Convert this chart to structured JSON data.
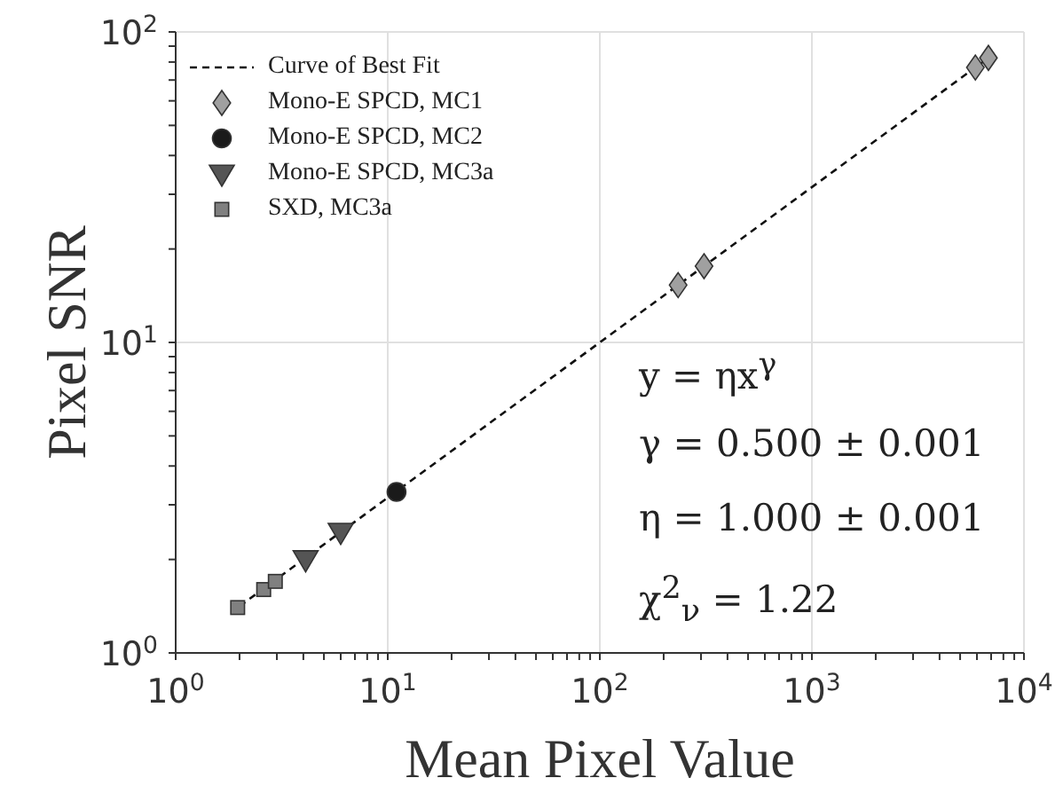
{
  "chart_data": {
    "type": "scatter",
    "xlabel": "Mean Pixel Value",
    "ylabel": "Pixel SNR",
    "log": "xy",
    "grid": true,
    "legend": "top left",
    "xlim": [
      1,
      10000
    ],
    "ylim": [
      1,
      100
    ],
    "xticks": [
      {
        "value": 1,
        "label": "10$^{0}$"
      },
      {
        "value": 2,
        "label": null
      },
      {
        "value": 3,
        "label": null
      },
      {
        "value": 4,
        "label": null
      },
      {
        "value": 5,
        "label": null
      },
      {
        "value": 6,
        "label": null
      },
      {
        "value": 7,
        "label": null
      },
      {
        "value": 8,
        "label": null
      },
      {
        "value": 9,
        "label": null
      },
      {
        "value": 10,
        "label": "10$^{1}$"
      },
      {
        "value": 20,
        "label": null
      },
      {
        "value": 30,
        "label": null
      },
      {
        "value": 40,
        "label": null
      },
      {
        "value": 50,
        "label": null
      },
      {
        "value": 60,
        "label": null
      },
      {
        "value": 70,
        "label": null
      },
      {
        "value": 80,
        "label": null
      },
      {
        "value": 90,
        "label": null
      },
      {
        "value": 100,
        "label": "10$^{2}$"
      },
      {
        "value": 200,
        "label": null
      },
      {
        "value": 300,
        "label": null
      },
      {
        "value": 400,
        "label": null
      },
      {
        "value": 500,
        "label": null
      },
      {
        "value": 600,
        "label": null
      },
      {
        "value": 700,
        "label": null
      },
      {
        "value": 800,
        "label": null
      },
      {
        "value": 900,
        "label": null
      },
      {
        "value": 1000,
        "label": "10$^{3}$"
      },
      {
        "value": 2000,
        "label": null
      },
      {
        "value": 3000,
        "label": null
      },
      {
        "value": 4000,
        "label": null
      },
      {
        "value": 5000,
        "label": null
      },
      {
        "value": 6000,
        "label": null
      },
      {
        "value": 7000,
        "label": null
      },
      {
        "value": 8000,
        "label": null
      },
      {
        "value": 9000,
        "label": null
      },
      {
        "value": 10000,
        "label": "10$^{4}$"
      }
    ],
    "yticks": [
      {
        "value": 1,
        "label": "10$^{0}$"
      },
      {
        "value": 2,
        "label": null
      },
      {
        "value": 3,
        "label": null
      },
      {
        "value": 4,
        "label": null
      },
      {
        "value": 5,
        "label": null
      },
      {
        "value": 6,
        "label": null
      },
      {
        "value": 7,
        "label": null
      },
      {
        "value": 8,
        "label": null
      },
      {
        "value": 9,
        "label": null
      },
      {
        "value": 10,
        "label": "10$^{1}$"
      },
      {
        "value": 20,
        "label": null
      },
      {
        "value": 30,
        "label": null
      },
      {
        "value": 40,
        "label": null
      },
      {
        "value": 50,
        "label": null
      },
      {
        "value": 60,
        "label": null
      },
      {
        "value": 70,
        "label": null
      },
      {
        "value": 80,
        "label": null
      },
      {
        "value": 90,
        "label": null
      },
      {
        "value": 100,
        "label": "10$^{2}$"
      }
    ],
    "series": [
      {
        "name": "Curve of Best Fit",
        "type": "line",
        "line_style": "dashed",
        "marker": "none",
        "color": "#111111",
        "x": [
          2,
          7000
        ],
        "values": [
          1.414,
          83.7
        ]
      },
      {
        "name": "Mono-E SPCD, MC1",
        "marker": "diamond",
        "color": "#a0a0a0",
        "x": [
          234,
          310,
          5900,
          6800
        ],
        "values": [
          15.3,
          17.6,
          76.8,
          82.5
        ]
      },
      {
        "name": "Mono-E SPCD, MC2",
        "marker": "circle",
        "color": "#1a1a1a",
        "x": [
          11
        ],
        "values": [
          3.3
        ]
      },
      {
        "name": "Mono-E SPCD, MC3a",
        "marker": "triangle",
        "color": "#555555",
        "x": [
          4.1,
          6.0
        ],
        "values": [
          2.0,
          2.45
        ]
      },
      {
        "name": "SXD, MC3a",
        "marker": "square",
        "color": "#808080",
        "x": [
          1.96,
          2.6,
          2.95
        ],
        "values": [
          1.4,
          1.6,
          1.7
        ]
      }
    ],
    "annotations": [
      "y = ηx$^{γ}$",
      "γ = 0.500 ± 0.001",
      "η = 1.000 ± 0.001",
      "χ$^{2}$$_{ν}$ = 1.22"
    ]
  }
}
